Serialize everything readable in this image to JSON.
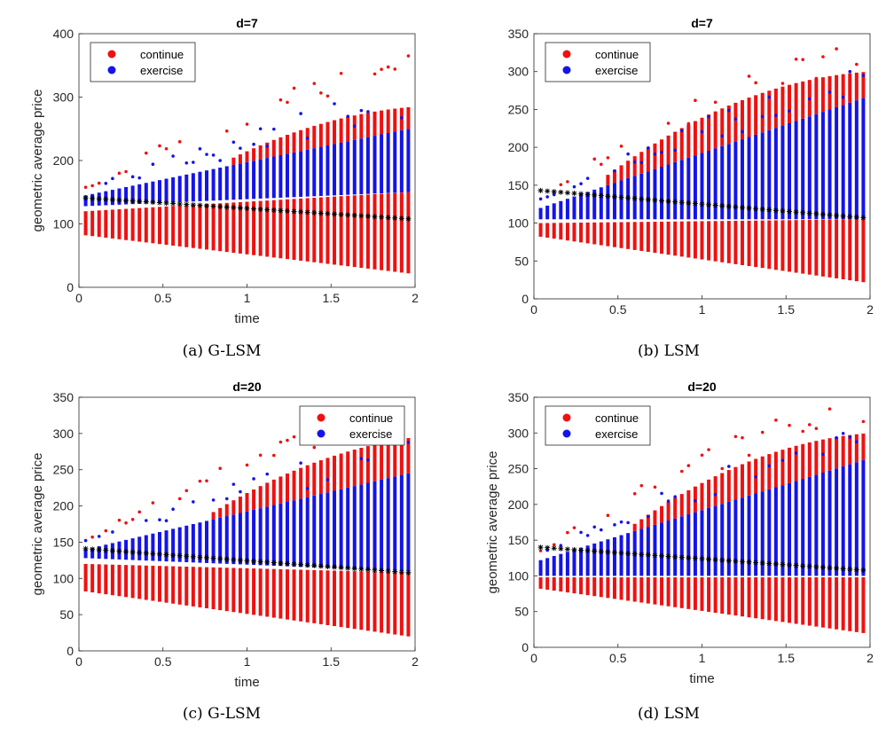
{
  "chart_data": [
    {
      "type": "scatter",
      "title": "d=7",
      "caption": "(a) G-LSM",
      "xlabel": "time",
      "ylabel": "geometric average price",
      "xlim": [
        0,
        2
      ],
      "ylim": [
        0,
        400
      ],
      "xticks": [
        0,
        0.5,
        1,
        1.5,
        2
      ],
      "xtick_labels": [
        "0",
        "0.5",
        "1",
        "1.5",
        "2"
      ],
      "yticks": [
        0,
        100,
        200,
        300,
        400
      ],
      "ytick_labels": [
        "0",
        "100",
        "200",
        "300",
        "400"
      ],
      "legend": [
        "continue",
        "exercise"
      ],
      "legend_position": "top-left",
      "time_start": 0.04,
      "time_step": 0.04,
      "n_dates": 49,
      "series": [
        {
          "name": "continue",
          "color": "#ee1111",
          "lower_start": 82,
          "lower_end": 22,
          "upper_start": 120,
          "upper_end": 150
        },
        {
          "name": "exercise",
          "color": "#1414e8",
          "band_low_start": 128,
          "band_low_end": 150,
          "band_high_start": 145,
          "band_high_end": 250
        },
        {
          "name": "continue upper tail",
          "color": "#ee1111",
          "tail_start": 150,
          "tail_end": 285,
          "tail_begin_time": 0.9,
          "outlier_max": 365
        },
        {
          "name": "exercise boundary",
          "color": "#000000",
          "marker": "asterisk",
          "start": 141,
          "end": 108
        }
      ]
    },
    {
      "type": "scatter",
      "title": "d=7",
      "caption": "(b) LSM",
      "xlabel": "",
      "ylabel": "",
      "xlim": [
        0,
        2
      ],
      "ylim": [
        0,
        350
      ],
      "xticks": [
        0,
        0.5,
        1,
        1.5,
        2
      ],
      "xtick_labels": [
        "0",
        "0.5",
        "1",
        "1.5",
        "2"
      ],
      "yticks": [
        0,
        50,
        100,
        150,
        200,
        250,
        300,
        350
      ],
      "ytick_labels": [
        "0",
        "50",
        "100",
        "150",
        "200",
        "250",
        "300",
        "350"
      ],
      "legend": [
        "continue",
        "exercise"
      ],
      "legend_position": "top-left",
      "time_start": 0.04,
      "time_step": 0.04,
      "n_dates": 49,
      "series": [
        {
          "name": "continue",
          "color": "#ee1111",
          "lower_start": 82,
          "lower_end": 22,
          "upper_start": 100,
          "upper_end": 105
        },
        {
          "name": "exercise",
          "color": "#1414e8",
          "band_low_start": 105,
          "band_low_end": 105,
          "band_high_start": 120,
          "band_high_end": 265
        },
        {
          "name": "continue upper tail",
          "color": "#ee1111",
          "tail_start": 150,
          "tail_end": 300,
          "tail_begin_time": 0.4,
          "outlier_max": 330
        },
        {
          "name": "exercise boundary",
          "color": "#000000",
          "marker": "asterisk",
          "start": 143,
          "end": 107
        }
      ]
    },
    {
      "type": "scatter",
      "title": "d=20",
      "caption": "(c) G-LSM",
      "xlabel": "time",
      "ylabel": "geometric average price",
      "xlim": [
        0,
        2
      ],
      "ylim": [
        0,
        350
      ],
      "xticks": [
        0,
        0.5,
        1,
        1.5,
        2
      ],
      "xtick_labels": [
        "0",
        "0.5",
        "1",
        "1.5",
        "2"
      ],
      "yticks": [
        0,
        50,
        100,
        150,
        200,
        250,
        300,
        350
      ],
      "ytick_labels": [
        "0",
        "50",
        "100",
        "150",
        "200",
        "250",
        "300",
        "350"
      ],
      "legend": [
        "continue",
        "exercise"
      ],
      "legend_position": "top-right",
      "time_start": 0.04,
      "time_step": 0.04,
      "n_dates": 49,
      "series": [
        {
          "name": "continue",
          "color": "#ee1111",
          "lower_start": 82,
          "lower_end": 20,
          "upper_start": 120,
          "upper_end": 108
        },
        {
          "name": "exercise",
          "color": "#1414e8",
          "band_low_start": 128,
          "band_low_end": 110,
          "band_high_start": 140,
          "band_high_end": 245
        },
        {
          "name": "continue upper tail",
          "color": "#ee1111",
          "tail_start": 150,
          "tail_end": 295,
          "tail_begin_time": 0.8,
          "outlier_max": 340
        },
        {
          "name": "exercise boundary",
          "color": "#000000",
          "marker": "asterisk",
          "start": 141,
          "end": 108
        }
      ]
    },
    {
      "type": "scatter",
      "title": "d=20",
      "caption": "(d) LSM",
      "xlabel": "time",
      "ylabel": "geometric average price",
      "xlim": [
        0,
        2
      ],
      "ylim": [
        0,
        350
      ],
      "xticks": [
        0,
        0.5,
        1,
        1.5,
        2
      ],
      "xtick_labels": [
        "0",
        "0.5",
        "1",
        "1.5",
        "2"
      ],
      "yticks": [
        0,
        50,
        100,
        150,
        200,
        250,
        300,
        350
      ],
      "ytick_labels": [
        "0",
        "50",
        "100",
        "150",
        "200",
        "250",
        "300",
        "350"
      ],
      "legend": [
        "continue",
        "exercise"
      ],
      "legend_position": "top-left",
      "time_start": 0.04,
      "time_step": 0.04,
      "n_dates": 49,
      "series": [
        {
          "name": "continue",
          "color": "#ee1111",
          "lower_start": 82,
          "lower_end": 20,
          "upper_start": 98,
          "upper_end": 98
        },
        {
          "name": "exercise",
          "color": "#1414e8",
          "band_low_start": 100,
          "band_low_end": 100,
          "band_high_start": 122,
          "band_high_end": 262
        },
        {
          "name": "continue upper tail",
          "color": "#ee1111",
          "tail_start": 150,
          "tail_end": 300,
          "tail_begin_time": 0.6,
          "outlier_max": 340
        },
        {
          "name": "exercise boundary",
          "color": "#000000",
          "marker": "asterisk",
          "start": 140,
          "end": 108
        }
      ]
    }
  ]
}
